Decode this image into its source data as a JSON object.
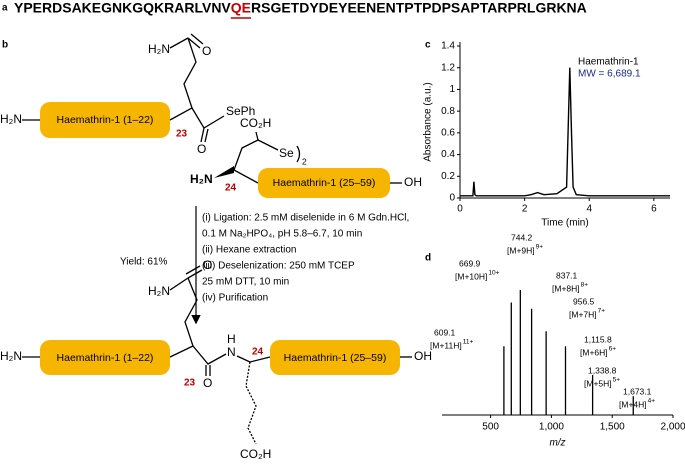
{
  "panel_a": {
    "label": "a",
    "sequence_start": "YPERDSAKEGNKGQKRARLVNV",
    "sequence_highlight": "QE",
    "sequence_end": "RSGETDYDEYEENENTPTPDPSAPTARPRLGRKNA"
  },
  "panel_b": {
    "label": "b",
    "reactant_1": {
      "n_term": "H₂N",
      "box": "Haemathrin-1 (1–22)",
      "residue": "23",
      "amide_n": "H₂N",
      "amide_o": "O",
      "ester_o": "O",
      "selenoester": "SePh"
    },
    "reactant_2": {
      "n_term": "H₂N",
      "residue": "24",
      "acid": "CO₂H",
      "selenium": "Se",
      "dimer": "2",
      "box": "Haemathrin-1 (25–59)",
      "c_term": "OH"
    },
    "conditions": [
      "(i) Ligation: 2.5 mM diselenide in 6 M Gdn.HCl,",
      "0.1 M Na₂HPO₄, pH 5.8–6.7, 10 min",
      "(ii) Hexane extraction",
      "(iii) Deselenization: 250 mM TCEP",
      "25 mM DTT, 10 min",
      "(iv) Purification"
    ],
    "yield": "Yield: 61%",
    "product": {
      "n_term": "H₂N",
      "box_1": "Haemathrin-1 (1–22)",
      "residue_1": "23",
      "amide_n": "H₂N",
      "amide_o": "O",
      "peptide_o": "O",
      "peptide_h": "H",
      "peptide_n": "N",
      "residue_2": "24",
      "box_2": "Haemathrin-1 (25–59)",
      "c_term": "OH",
      "acid": "CO₂H"
    }
  },
  "chart_data": [
    {
      "type": "line",
      "panel_label": "c",
      "x_label": "Time (min)",
      "y_label": "Absorbance (a.u.)",
      "annotations": [
        "Haemathrin-1",
        "MW = 6,689.1"
      ],
      "color": "#000000",
      "x": [
        0,
        0.4,
        0.43,
        0.46,
        0.5,
        1,
        2,
        2.2,
        2.4,
        2.6,
        3.0,
        3.3,
        3.4,
        3.45,
        3.5,
        3.6,
        4,
        5,
        6,
        6.5
      ],
      "values": [
        0.02,
        0.02,
        0.15,
        0.03,
        0.02,
        0.02,
        0.02,
        0.03,
        0.05,
        0.03,
        0.04,
        0.1,
        1.2,
        0.6,
        0.1,
        0.03,
        0.02,
        0.02,
        0.02,
        0.02
      ],
      "xlim": [
        0,
        6.5
      ],
      "xticks": [
        0,
        2,
        4,
        6
      ],
      "ylim": [
        0,
        1.4
      ],
      "yticks": [
        0,
        0.2,
        0.4,
        0.6,
        0.8,
        1.0,
        1.2,
        1.4
      ]
    },
    {
      "type": "stem",
      "panel_label": "d",
      "x_label": "m/z",
      "color": "#000000",
      "x": [
        609.1,
        669.9,
        744.2,
        837.1,
        956.5,
        1115.8,
        1338.8,
        1673.1
      ],
      "values": [
        55,
        90,
        100,
        85,
        67,
        55,
        32,
        15
      ],
      "peak_labels": [
        "609.1",
        "669.9",
        "744.2",
        "837.1",
        "956.5",
        "1,115.8",
        "1,338.8",
        "1,673.1"
      ],
      "ions": [
        "[M+11H]",
        "[M+10H]",
        "[M+9H]",
        "[M+8H]",
        "[M+7H]",
        "[M+6H]",
        "[M+5H]",
        "[M+4H]"
      ],
      "charges": [
        "11+",
        "10+",
        "9+",
        "8+",
        "7+",
        "6+",
        "5+",
        "4+"
      ],
      "xlim": [
        100,
        2000
      ],
      "xticks": [
        {
          "value": 500,
          "label": "500"
        },
        {
          "value": 1000,
          "label": "1,000"
        },
        {
          "value": 1500,
          "label": "1,500"
        },
        {
          "value": 2000,
          "label": "2,000"
        }
      ],
      "ylim": [
        0,
        100
      ]
    }
  ]
}
